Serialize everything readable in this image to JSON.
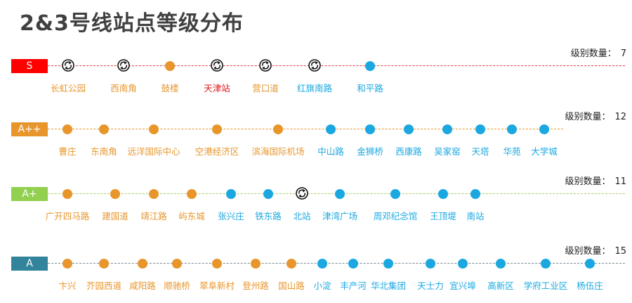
{
  "title": "2&3号线站点等级分布",
  "count_label": "级别数量：",
  "colors": {
    "orange": "#E8962C",
    "blue": "#1BA8E0",
    "red": "#E0151B",
    "badge_S": "#FF0000",
    "badge_App": "#E8962C",
    "badge_Ap": "#92D050",
    "badge_A": "#31849B",
    "line_S": "#E04040",
    "line_App": "#E8962C",
    "line_Ap": "#A8D060",
    "line_A": "#7a8a96"
  },
  "tiers": [
    {
      "key": "S",
      "badge": "S",
      "count": "7",
      "stations": [
        {
          "name": "长虹公园",
          "type": "interchange",
          "label_color": "orange"
        },
        {
          "name": "西南角",
          "type": "interchange",
          "label_color": "orange"
        },
        {
          "name": "鼓楼",
          "type": "orange",
          "label_color": "orange"
        },
        {
          "name": "天津站",
          "type": "interchange",
          "label_color": "red"
        },
        {
          "name": "营口道",
          "type": "interchange",
          "label_color": "orange"
        },
        {
          "name": "红旗南路",
          "type": "interchange",
          "label_color": "blue"
        },
        {
          "name": "和平路",
          "type": "blue",
          "label_color": "blue"
        }
      ]
    },
    {
      "key": "App",
      "badge": "A++",
      "count": "12",
      "stations": [
        {
          "name": "曹庄",
          "type": "orange",
          "label_color": "orange"
        },
        {
          "name": "东南角",
          "type": "orange",
          "label_color": "orange"
        },
        {
          "name": "远洋国际中心",
          "type": "orange",
          "label_color": "orange"
        },
        {
          "name": "空港经济区",
          "type": "orange",
          "label_color": "orange"
        },
        {
          "name": "滨海国际机场",
          "type": "orange",
          "label_color": "orange"
        },
        {
          "name": "中山路",
          "type": "blue",
          "label_color": "blue"
        },
        {
          "name": "金狮桥",
          "type": "blue",
          "label_color": "blue"
        },
        {
          "name": "西康路",
          "type": "blue",
          "label_color": "blue"
        },
        {
          "name": "吴家窑",
          "type": "blue",
          "label_color": "blue"
        },
        {
          "name": "天塔",
          "type": "blue",
          "label_color": "blue"
        },
        {
          "name": "华苑",
          "type": "blue",
          "label_color": "blue"
        },
        {
          "name": "大学城",
          "type": "blue",
          "label_color": "blue"
        }
      ]
    },
    {
      "key": "Ap",
      "badge": "A+",
      "count": "11",
      "stations": [
        {
          "name": "广开四马路",
          "type": "orange",
          "label_color": "orange"
        },
        {
          "name": "建国道",
          "type": "orange",
          "label_color": "orange"
        },
        {
          "name": "靖江路",
          "type": "orange",
          "label_color": "orange"
        },
        {
          "name": "屿东城",
          "type": "orange",
          "label_color": "orange"
        },
        {
          "name": "张兴庄",
          "type": "blue",
          "label_color": "blue"
        },
        {
          "name": "铁东路",
          "type": "blue",
          "label_color": "blue"
        },
        {
          "name": "北站",
          "type": "interchange",
          "label_color": "blue"
        },
        {
          "name": "津湾广场",
          "type": "blue",
          "label_color": "blue"
        },
        {
          "name": "周邓纪念馆",
          "type": "blue",
          "label_color": "blue"
        },
        {
          "name": "王顶堤",
          "type": "blue",
          "label_color": "blue"
        },
        {
          "name": "南站",
          "type": "blue",
          "label_color": "blue"
        }
      ]
    },
    {
      "key": "A",
      "badge": "A",
      "count": "15",
      "stations": [
        {
          "name": "卞兴",
          "type": "orange",
          "label_color": "orange"
        },
        {
          "name": "芥园西道",
          "type": "orange",
          "label_color": "orange"
        },
        {
          "name": "咸阳路",
          "type": "orange",
          "label_color": "orange"
        },
        {
          "name": "顺驰桥",
          "type": "orange",
          "label_color": "orange"
        },
        {
          "name": "翠阜新村",
          "type": "orange",
          "label_color": "orange"
        },
        {
          "name": "登州路",
          "type": "orange",
          "label_color": "orange"
        },
        {
          "name": "国山路",
          "type": "orange",
          "label_color": "orange"
        },
        {
          "name": "小淀",
          "type": "blue",
          "label_color": "blue"
        },
        {
          "name": "丰产河",
          "type": "blue",
          "label_color": "blue"
        },
        {
          "name": "华北集团",
          "type": "blue",
          "label_color": "blue"
        },
        {
          "name": "天士力",
          "type": "blue",
          "label_color": "blue"
        },
        {
          "name": "宜兴埠",
          "type": "blue",
          "label_color": "blue"
        },
        {
          "name": "高新区",
          "type": "blue",
          "label_color": "blue"
        },
        {
          "name": "学府工业区",
          "type": "blue",
          "label_color": "blue"
        },
        {
          "name": "杨伍庄",
          "type": "blue",
          "label_color": "blue"
        }
      ]
    }
  ]
}
